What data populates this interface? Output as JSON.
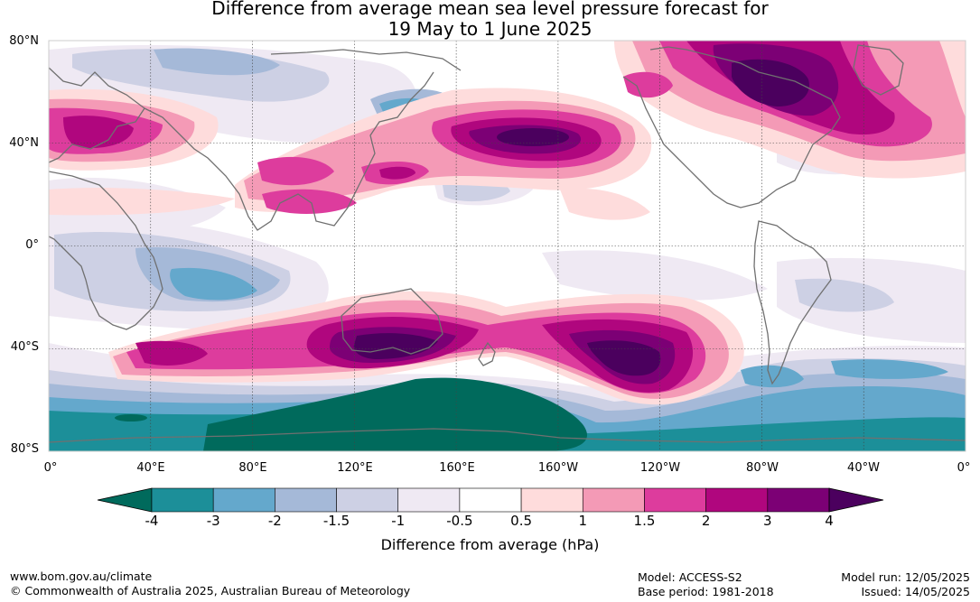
{
  "title_line1": "Difference from average mean sea level pressure forecast for",
  "title_line2": "19 May to 1 June 2025",
  "lat_labels": [
    "80°N",
    "40°N",
    "0°",
    "40°S",
    "80°S"
  ],
  "lon_labels": [
    "0°",
    "40°E",
    "80°E",
    "120°E",
    "160°E",
    "160°W",
    "120°W",
    "80°W",
    "40°W",
    "0°"
  ],
  "colorbar": {
    "title": "Difference from average (hPa)",
    "ticks": [
      "-4",
      "-3",
      "-2",
      "-1.5",
      "-1",
      "-0.5",
      "0.5",
      "1",
      "1.5",
      "2",
      "3",
      "4"
    ],
    "colors": [
      "#006a5c",
      "#1c8f99",
      "#64a8cc",
      "#a5b9d8",
      "#cdd0e4",
      "#efe9f3",
      "#ffffff",
      "#fedcdc",
      "#f49ab6",
      "#dd3c9d",
      "#b0067e",
      "#7c0075",
      "#4b005e"
    ]
  },
  "footer": {
    "website": "www.bom.gov.au/climate",
    "copyright": "© Commonwealth of Australia 2025, Australian Bureau of Meteorology",
    "model": "Model: ACCESS-S2",
    "base_period": "Base period: 1981-2018",
    "model_run": "Model run: 12/05/2025",
    "issued": "Issued: 14/05/2025"
  },
  "map_data": {
    "lon_range": [
      0,
      360
    ],
    "lat_range": [
      -80,
      80
    ],
    "units": "hPa",
    "anomaly_regions": [
      {
        "name": "north-pacific-high",
        "lon": 185,
        "lat": 43,
        "level_max": 4
      },
      {
        "name": "hudson-bay-high",
        "lon": 272,
        "lat": 60,
        "level_max": 4
      },
      {
        "name": "west-europe-high",
        "lon": 20,
        "lat": 42,
        "level_max": 3
      },
      {
        "name": "southern-australia-high",
        "lon": 140,
        "lat": -40,
        "level_max": 4
      },
      {
        "name": "south-pacific-high",
        "lon": 243,
        "lat": -42,
        "level_max": 4
      },
      {
        "name": "south-indian-ocean-high",
        "lon": 60,
        "lat": -40,
        "level_max": 3
      },
      {
        "name": "antarctic-low",
        "lon": 180,
        "lat": -70,
        "level_min": -4
      },
      {
        "name": "indian-ocean-low",
        "lon": 75,
        "lat": -18,
        "level_min": -2
      },
      {
        "name": "south-atlantic-low",
        "lon": 320,
        "lat": -48,
        "level_min": -2
      }
    ]
  }
}
